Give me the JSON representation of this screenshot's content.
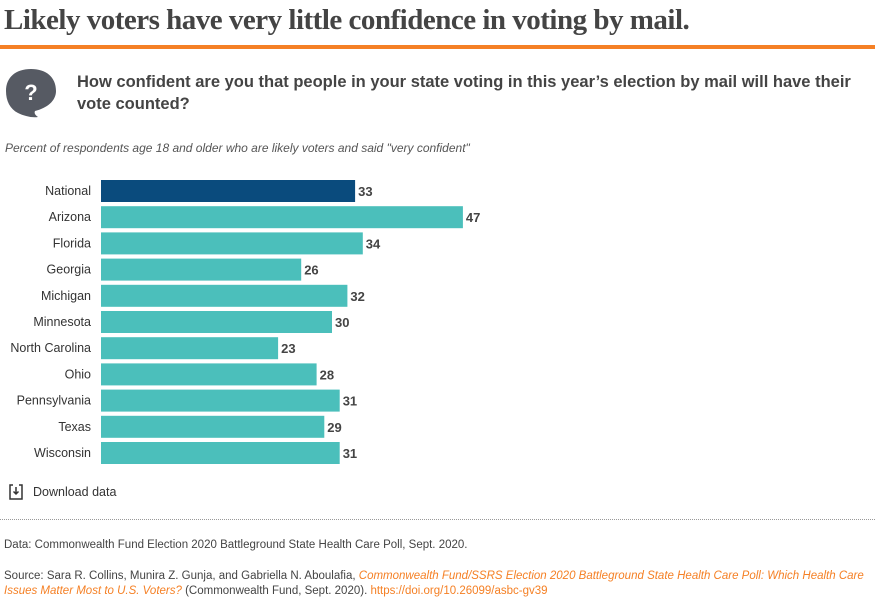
{
  "title": "Likely voters have very little confidence in voting by mail.",
  "question": "How confident are you that people in your state voting in this year’s election by mail will have their vote counted?",
  "question_icon": "question-bubble-icon",
  "subtitle": "Percent of respondents age 18 and older who are likely voters and said \"very confident\"",
  "download_label": "Download data",
  "data_note": "Data: Commonwealth Fund Election 2020 Battleground State Health Care Poll, Sept. 2020.",
  "source": {
    "prefix": "Source: Sara R. Collins, Munira Z. Gunja, and Gabriella N. Aboulafia, ",
    "link_title": "Commonwealth Fund/SSRS Election 2020 Battleground State Health Care Poll: Which Health Care Issues Matter Most to U.S. Voters?",
    "suffix": " (Commonwealth Fund, Sept. 2020). ",
    "doi": "https://doi.org/10.26099/asbc-gv39"
  },
  "colors": {
    "accent": "#f58025",
    "highlight": "#0a4b7d",
    "bar": "#4bbfbb"
  },
  "chart_data": {
    "type": "bar",
    "orientation": "horizontal",
    "categories": [
      "National",
      "Arizona",
      "Florida",
      "Georgia",
      "Michigan",
      "Minnesota",
      "North Carolina",
      "Ohio",
      "Pennsylvania",
      "Texas",
      "Wisconsin"
    ],
    "values": [
      33,
      47,
      34,
      26,
      32,
      30,
      23,
      28,
      31,
      29,
      31
    ],
    "highlight": "National",
    "xlim": [
      0,
      100
    ],
    "grid": false
  }
}
